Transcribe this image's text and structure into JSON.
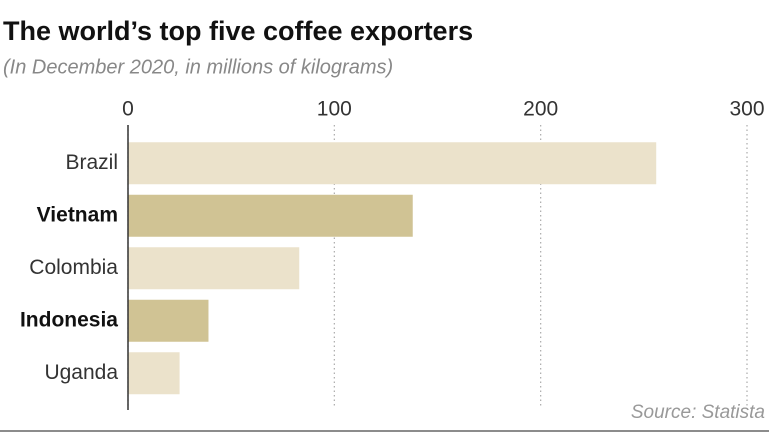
{
  "chart_data": {
    "type": "barh",
    "title": "The world’s top five coffee exporters",
    "subtitle": "(In December 2020, in millions of kilograms)",
    "source": "Source: Statista",
    "categories": [
      "Brazil",
      "Vietnam",
      "Colombia",
      "Indonesia",
      "Uganda"
    ],
    "values": [
      256,
      138,
      83,
      39,
      25
    ],
    "colors": [
      "#ebe2cb",
      "#d0c394",
      "#ebe2cb",
      "#d0c394",
      "#ebe2cb"
    ],
    "highlighted": [
      false,
      true,
      false,
      true,
      false
    ],
    "xlim": [
      0,
      300
    ],
    "xticks": [
      0,
      100,
      200,
      300
    ],
    "grid": true
  }
}
